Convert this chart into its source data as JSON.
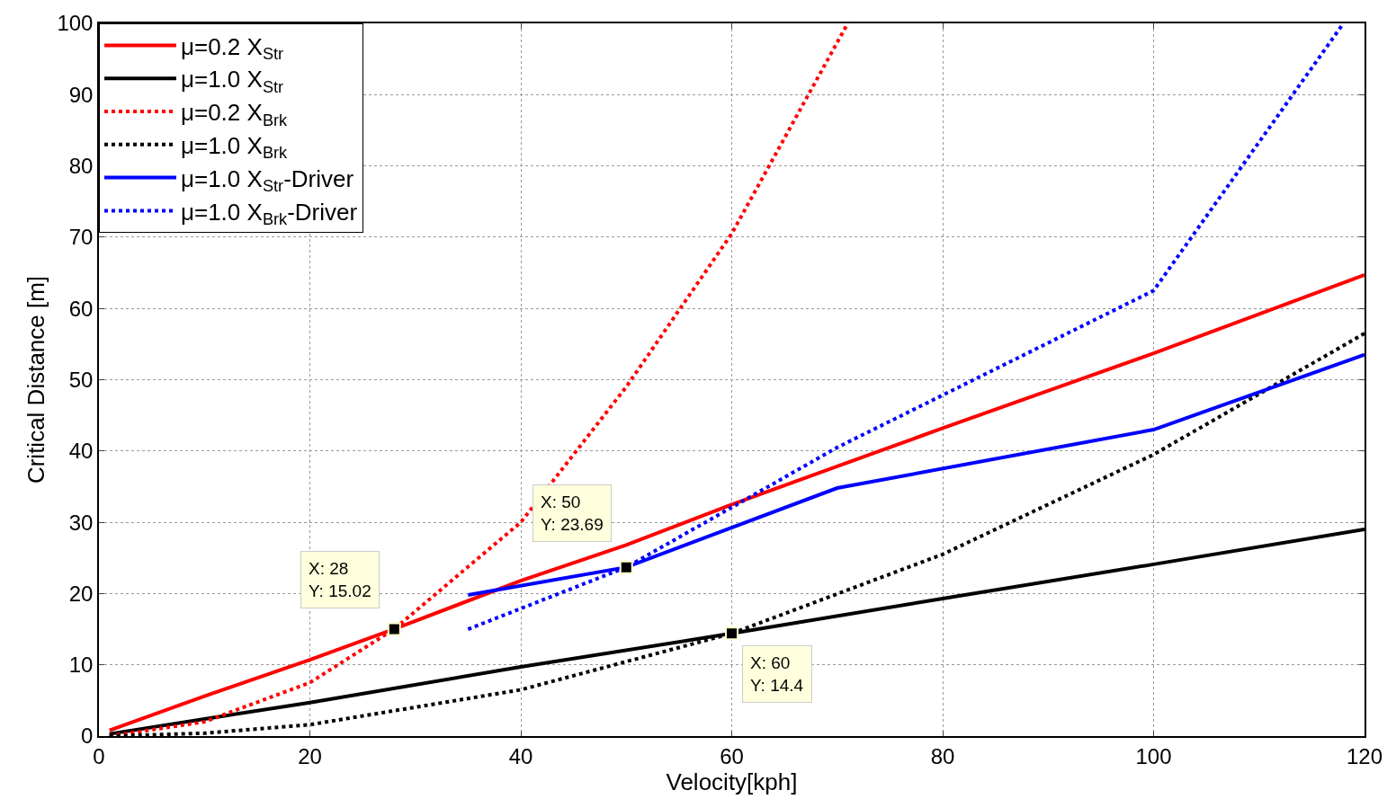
{
  "chart_data": {
    "type": "line",
    "xlabel": "Velocity[kph]",
    "ylabel": "Critical Distance [m]",
    "xlim": [
      0,
      120
    ],
    "ylim": [
      0,
      100
    ],
    "xticks": [
      0,
      20,
      40,
      60,
      80,
      100,
      120
    ],
    "yticks": [
      0,
      10,
      20,
      30,
      40,
      50,
      60,
      70,
      80,
      90,
      100
    ],
    "grid": true,
    "legend": "top left",
    "marker": "none",
    "series": [
      {
        "name": "μ=0.2 X$_{Str}$",
        "color": "#ff0000",
        "line_style": "solid",
        "x": [
          1,
          10,
          20,
          28,
          40,
          50,
          60,
          80,
          100,
          120
        ],
        "values": [
          0.8,
          5.6,
          10.7,
          15.02,
          21.8,
          26.8,
          32.5,
          43.2,
          53.7,
          64.7
        ]
      },
      {
        "name": "μ=1.0 X$_{Str}$",
        "color": "#000000",
        "line_style": "solid",
        "x": [
          1,
          10,
          20,
          40,
          60,
          80,
          100,
          120
        ],
        "values": [
          0.3,
          2.4,
          4.7,
          9.7,
          14.4,
          19.3,
          24.1,
          29
        ]
      },
      {
        "name": "μ=0.2 X$_{Brk}$",
        "color": "#ff0000",
        "line_style": "dotted",
        "x": [
          1,
          10,
          20,
          28,
          40,
          50,
          60,
          71
        ],
        "values": [
          0,
          2,
          7.5,
          15.02,
          30,
          49,
          70.5,
          100
        ]
      },
      {
        "name": "μ=1.0 X$_{Brk}$",
        "color": "#000000",
        "line_style": "dotted",
        "x": [
          1,
          10,
          20,
          40,
          60,
          80,
          100,
          120
        ],
        "values": [
          0,
          0.4,
          1.6,
          6.5,
          14.4,
          25.5,
          39.5,
          56.5
        ]
      },
      {
        "name": "μ=1.0 X$_{Str}$-Driver",
        "color": "#0000ff",
        "line_style": "solid",
        "x": [
          35,
          50,
          70,
          100,
          120
        ],
        "values": [
          19.8,
          23.69,
          34.8,
          43,
          53.5
        ]
      },
      {
        "name": "μ=1.0 X$_{Brk}$-Driver",
        "color": "#0000ff",
        "line_style": "dotted",
        "x": [
          35,
          50,
          70,
          100,
          118
        ],
        "values": [
          15,
          23.69,
          40.5,
          62.5,
          100
        ]
      }
    ],
    "annotations": [
      {
        "text": "X: 28\nY: 15.02",
        "x": 28,
        "y": 15.02
      },
      {
        "text": "X: 50\nY: 23.69",
        "x": 50,
        "y": 23.69
      },
      {
        "text": "X: 60\nY: 14.4",
        "x": 60,
        "y": 14.4
      }
    ]
  }
}
